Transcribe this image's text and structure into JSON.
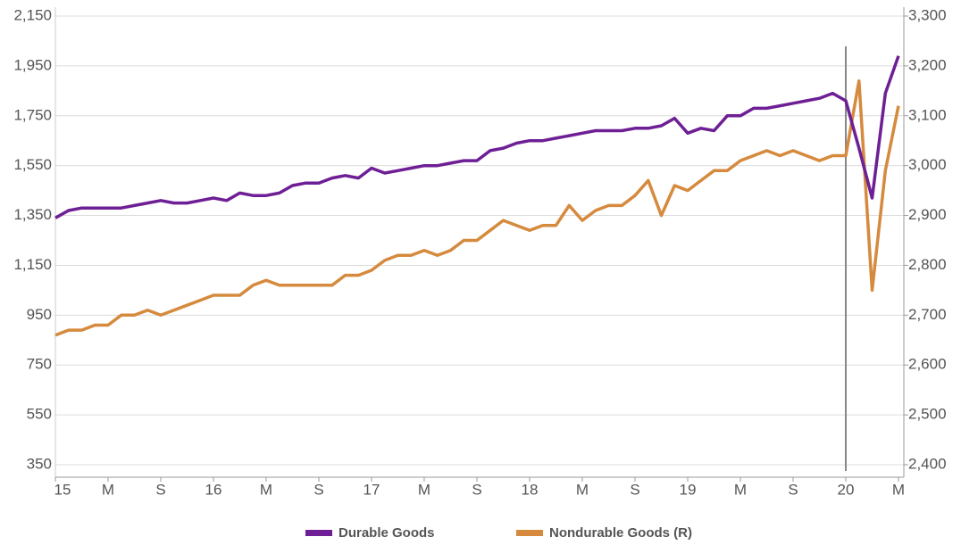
{
  "chart_data": {
    "type": "line",
    "categories": [
      "15",
      null,
      null,
      null,
      "M",
      null,
      null,
      null,
      "S",
      null,
      null,
      null,
      "16",
      null,
      null,
      null,
      "M",
      null,
      null,
      null,
      "S",
      null,
      null,
      null,
      "17",
      null,
      null,
      null,
      "M",
      null,
      null,
      null,
      "S",
      null,
      null,
      null,
      "18",
      null,
      null,
      null,
      "M",
      null,
      null,
      null,
      "S",
      null,
      null,
      null,
      "19",
      null,
      null,
      null,
      "M",
      null,
      null,
      null,
      "S",
      null,
      null,
      null,
      "20",
      null,
      null,
      null,
      "M"
    ],
    "series": [
      {
        "name": "Durable Goods",
        "color": "#6e1f95",
        "values": [
          1340,
          1370,
          1380,
          1380,
          1380,
          1380,
          1390,
          1400,
          1410,
          1400,
          1400,
          1410,
          1420,
          1410,
          1440,
          1430,
          1430,
          1440,
          1470,
          1480,
          1480,
          1500,
          1510,
          1500,
          1540,
          1520,
          1530,
          1540,
          1550,
          1550,
          1560,
          1570,
          1570,
          1610,
          1620,
          1640,
          1650,
          1650,
          1660,
          1670,
          1680,
          1690,
          1690,
          1690,
          1700,
          1700,
          1710,
          1740,
          1680,
          1700,
          1690,
          1750,
          1750,
          1780,
          1780,
          1790,
          1800,
          1810,
          1820,
          1840,
          1810,
          1620,
          1420,
          1840,
          1990
        ]
      },
      {
        "name": "Nondurable Goods (R)",
        "color": "#d58a3e",
        "axis": "y2",
        "values": [
          2660,
          2670,
          2670,
          2680,
          2680,
          2700,
          2700,
          2710,
          2700,
          2710,
          2720,
          2730,
          2740,
          2740,
          2740,
          2760,
          2770,
          2760,
          2760,
          2760,
          2760,
          2760,
          2780,
          2780,
          2790,
          2810,
          2820,
          2820,
          2830,
          2820,
          2830,
          2850,
          2850,
          2870,
          2890,
          2880,
          2870,
          2880,
          2880,
          2920,
          2890,
          2910,
          2920,
          2920,
          2940,
          2970,
          2900,
          2960,
          2950,
          2970,
          2990,
          2990,
          3010,
          3020,
          3030,
          3020,
          3030,
          3020,
          3010,
          3020,
          3020,
          3170,
          2750,
          2990,
          3120
        ]
      }
    ],
    "ylim": [
      350,
      2150
    ],
    "yticks": [
      350,
      550,
      750,
      950,
      {
        "value": 1150,
        "label": "1,150"
      },
      {
        "value": 1350,
        "label": "1,350"
      },
      {
        "value": 1550,
        "label": "1,550"
      },
      {
        "value": 1750,
        "label": "1,750"
      },
      {
        "value": 1950,
        "label": "1,950"
      },
      {
        "value": 2150,
        "label": "2,150"
      }
    ],
    "y2lim": [
      2400,
      3300
    ],
    "y2ticks": [
      {
        "value": 2400,
        "label": "2,400"
      },
      {
        "value": 2500,
        "label": "2,500"
      },
      {
        "value": 2600,
        "label": "2,600"
      },
      {
        "value": 2700,
        "label": "2,700"
      },
      {
        "value": 2800,
        "label": "2,800"
      },
      {
        "value": 2900,
        "label": "2,900"
      },
      {
        "value": 3000,
        "label": "3,000"
      },
      {
        "value": 3100,
        "label": "3,100"
      },
      {
        "value": 3200,
        "label": "3,200"
      },
      {
        "value": 3300,
        "label": "3,300"
      }
    ],
    "grid": true,
    "legend": "bottom",
    "reference_line": {
      "category_index": 60,
      "color": "#888888"
    }
  }
}
